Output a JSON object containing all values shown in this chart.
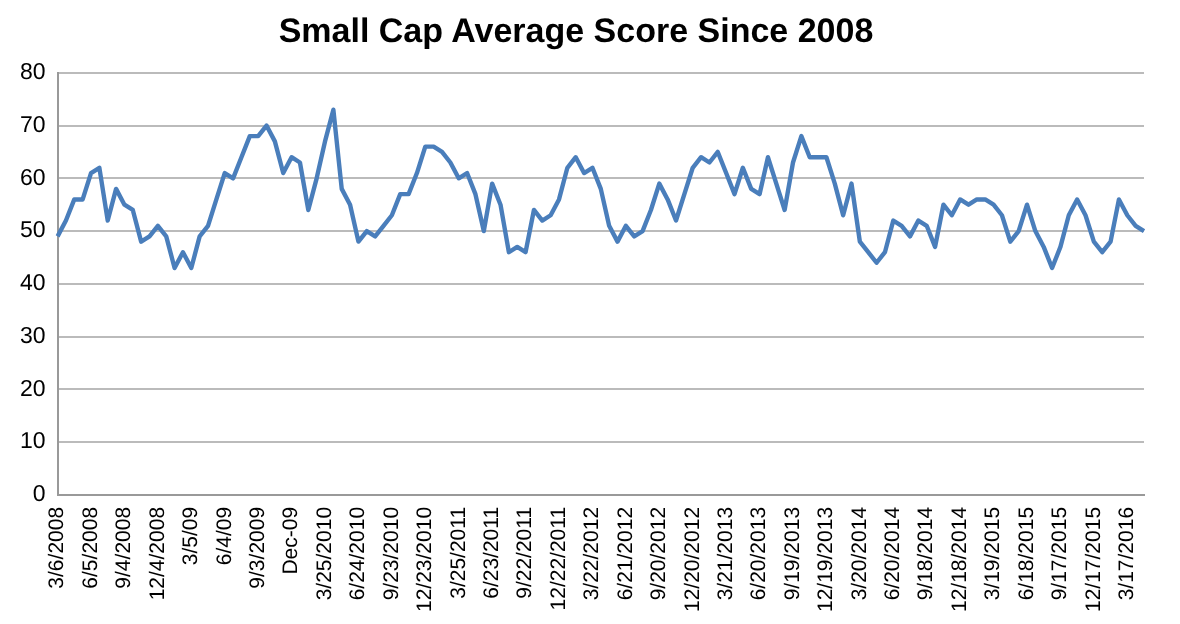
{
  "chart_data": {
    "type": "line",
    "title": "Small Cap Average Score Since 2008",
    "categories": [
      "3/6/2008",
      null,
      null,
      null,
      "6/5/2008",
      null,
      null,
      null,
      "9/4/2008",
      null,
      null,
      null,
      "12/4/2008",
      null,
      null,
      null,
      "3/5/09",
      null,
      null,
      null,
      "6/4/09",
      null,
      null,
      null,
      "9/3/2009",
      null,
      null,
      null,
      "Dec-09",
      null,
      null,
      null,
      "3/25/2010",
      null,
      null,
      null,
      "6/24/2010",
      null,
      null,
      null,
      "9/23/2010",
      null,
      null,
      null,
      "12/23/2010",
      null,
      null,
      null,
      "3/25/2011",
      null,
      null,
      null,
      "6/23/2011",
      null,
      null,
      null,
      "9/22/2011",
      null,
      null,
      null,
      "12/22/2011",
      null,
      null,
      null,
      "3/22/2012",
      null,
      null,
      null,
      "6/21/2012",
      null,
      null,
      null,
      "9/20/2012",
      null,
      null,
      null,
      "12/20/2012",
      null,
      null,
      null,
      "3/21/2013",
      null,
      null,
      null,
      "6/20/2013",
      null,
      null,
      null,
      "9/19/2013",
      null,
      null,
      null,
      "12/19/2013",
      null,
      null,
      null,
      "3/20/2014",
      null,
      null,
      null,
      "6/20/2014",
      null,
      null,
      null,
      "9/18/2014",
      null,
      null,
      null,
      "12/18/2014",
      null,
      null,
      null,
      "3/19/2015",
      null,
      null,
      null,
      "6/18/2015",
      null,
      null,
      null,
      "9/17/2015",
      null,
      null,
      null,
      "12/17/2015",
      null,
      null,
      null,
      "3/17/2016",
      null,
      null
    ],
    "series": [
      {
        "color": "#4a7ebb",
        "values": [
          49,
          52,
          56,
          56,
          61,
          62,
          52,
          58,
          55,
          54,
          48,
          49,
          51,
          49,
          43,
          46,
          43,
          49,
          51,
          56,
          61,
          60,
          64,
          68,
          68,
          70,
          67,
          61,
          64,
          63,
          54,
          60,
          67,
          73,
          58,
          55,
          48,
          50,
          49,
          51,
          53,
          57,
          57,
          61,
          66,
          66,
          65,
          63,
          60,
          61,
          57,
          50,
          59,
          55,
          46,
          47,
          46,
          54,
          52,
          53,
          56,
          62,
          64,
          61,
          62,
          58,
          51,
          48,
          51,
          49,
          50,
          54,
          59,
          56,
          52,
          57,
          62,
          64,
          63,
          65,
          61,
          57,
          62,
          58,
          57,
          64,
          59,
          54,
          63,
          68,
          64,
          64,
          64,
          59,
          53,
          59,
          48,
          46,
          44,
          46,
          52,
          51,
          49,
          52,
          51,
          47,
          55,
          53,
          56,
          55,
          56,
          56,
          55,
          53,
          48,
          50,
          55,
          50,
          47,
          43,
          47,
          53,
          56,
          53,
          48,
          46,
          48,
          56,
          53,
          51,
          50
        ]
      }
    ],
    "ylim": [
      0,
      80
    ],
    "yticks": [
      0,
      10,
      20,
      30,
      40,
      50,
      60,
      70,
      80
    ],
    "grid": "y",
    "marker": "none",
    "line_style": "solid"
  }
}
